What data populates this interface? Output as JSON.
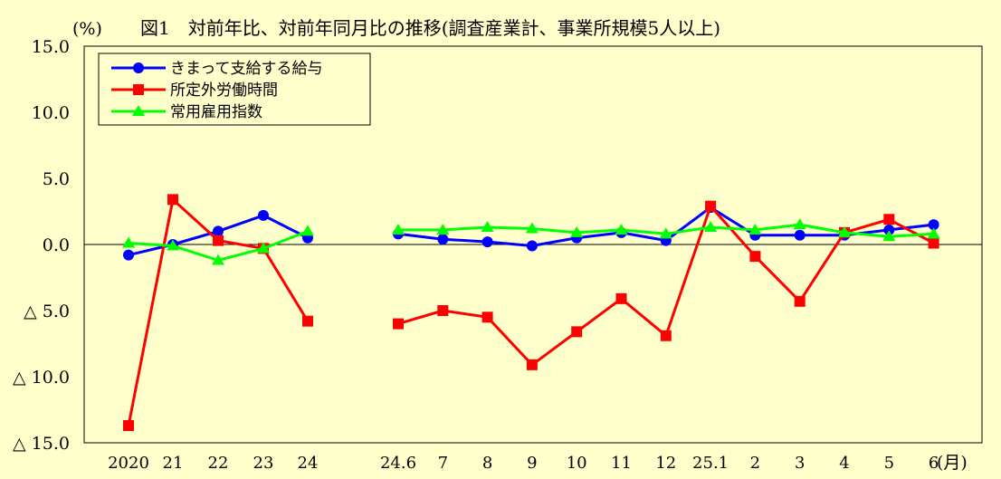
{
  "unit_label": "(%)",
  "title": "図1　対前年比、対前年同月比の推移(調査産業計、事業所規模5人以上)",
  "x_unit_label": "(月)",
  "chart_data": {
    "type": "line",
    "title": "図1　対前年比、対前年同月比の推移(調査産業計、事業所規模5人以上)",
    "ylabel": "(%)",
    "xlabel": "(月)",
    "ylim": [
      -15.0,
      15.0
    ],
    "yticks": [
      15.0,
      10.0,
      5.0,
      0.0,
      -5.0,
      -10.0,
      -15.0
    ],
    "ytick_labels": [
      "15.0",
      "10.0",
      "5.0",
      "0.0",
      "△ 5.0",
      "△ 10.0",
      "△ 15.0"
    ],
    "grid": false,
    "zero_line": true,
    "legend_position": "top-left",
    "categories": [
      "2020",
      "21",
      "22",
      "23",
      "24",
      "24.6",
      "7",
      "8",
      "9",
      "10",
      "11",
      "12",
      "25.1",
      "2",
      "3",
      "4",
      "5",
      "6"
    ],
    "annual_count": 5,
    "series": [
      {
        "name": "きまって支給する給与",
        "color": "#0000ff",
        "marker": "circle",
        "values": [
          -0.8,
          0.0,
          1.0,
          2.2,
          0.5,
          0.8,
          0.4,
          0.2,
          -0.1,
          0.5,
          0.9,
          0.3,
          2.8,
          0.7,
          0.7,
          0.7,
          1.1,
          1.5
        ]
      },
      {
        "name": "所定外労働時間",
        "color": "#ff0000",
        "marker": "square",
        "values": [
          -13.7,
          3.4,
          0.3,
          -0.3,
          -5.8,
          -6.0,
          -5.0,
          -5.5,
          -9.1,
          -6.6,
          -4.1,
          -6.9,
          2.9,
          -0.9,
          -4.3,
          0.9,
          1.9,
          0.1
        ]
      },
      {
        "name": "常用雇用指数",
        "color": "#00ff00",
        "marker": "triangle",
        "values": [
          0.1,
          -0.1,
          -1.2,
          -0.3,
          1.0,
          1.1,
          1.1,
          1.3,
          1.2,
          0.9,
          1.1,
          0.8,
          1.3,
          1.1,
          1.5,
          0.9,
          0.6,
          0.8
        ]
      }
    ]
  }
}
